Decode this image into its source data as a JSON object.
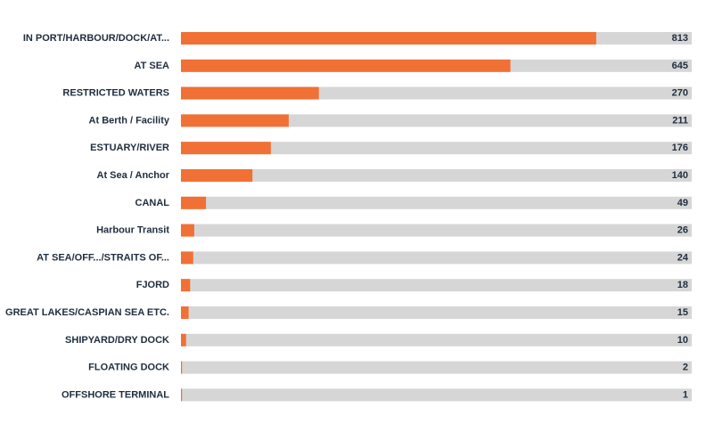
{
  "chart_data": {
    "type": "bar",
    "orientation": "horizontal",
    "categories": [
      "IN PORT/HARBOUR/DOCK/AT...",
      "AT SEA",
      "RESTRICTED WATERS",
      "At Berth / Facility",
      "ESTUARY/RIVER",
      "At Sea / Anchor",
      "CANAL",
      "Harbour Transit",
      "AT SEA/OFF.../STRAITS OF...",
      "FJORD",
      "GREAT LAKES/CASPIAN SEA ETC.",
      "SHIPYARD/DRY DOCK",
      "FLOATING DOCK",
      "OFFSHORE TERMINAL"
    ],
    "values": [
      813,
      645,
      270,
      211,
      176,
      140,
      49,
      26,
      24,
      18,
      15,
      10,
      2,
      1
    ],
    "xlim": [
      0,
      1000
    ],
    "title": "",
    "xlabel": "",
    "ylabel": "",
    "grid": false,
    "legend": "none",
    "colors": {
      "bar": "#f07035",
      "track": "#d6d6d6",
      "text": "#1f2d3d"
    }
  }
}
